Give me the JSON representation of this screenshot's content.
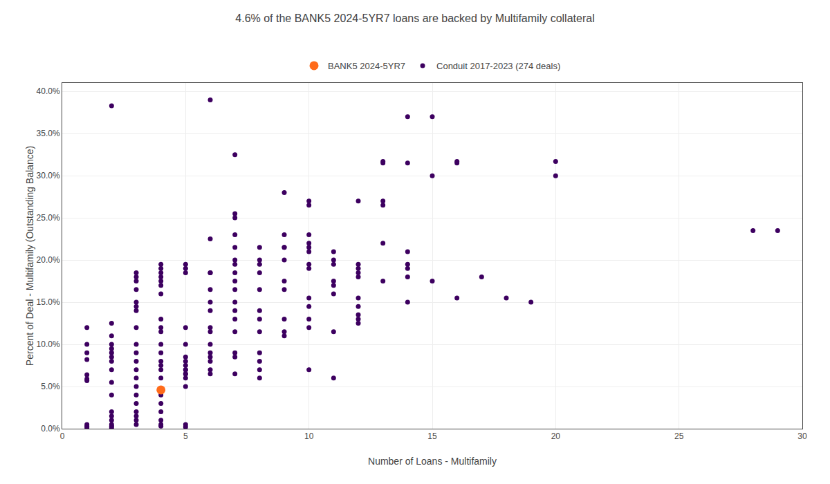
{
  "chart_data": {
    "type": "scatter",
    "title": "4.6% of the BANK5 2024-5YR7 loans are backed by Multifamily collateral",
    "xlabel": "Number of Loans - Multifamily",
    "ylabel": "Percent of Deal - Multifamily (Outstanding Balance)",
    "xlim": [
      0,
      30
    ],
    "ylim": [
      0,
      0.41
    ],
    "xticks": [
      0,
      5,
      10,
      15,
      20,
      25,
      30
    ],
    "yticks": [
      {
        "value": 0.0,
        "label": "0.0%"
      },
      {
        "value": 0.05,
        "label": "5.0%"
      },
      {
        "value": 0.1,
        "label": "10.0%"
      },
      {
        "value": 0.15,
        "label": "15.0%"
      },
      {
        "value": 0.2,
        "label": "20.0%"
      },
      {
        "value": 0.25,
        "label": "25.0%"
      },
      {
        "value": 0.3,
        "label": "30.0%"
      },
      {
        "value": 0.35,
        "label": "35.0%"
      },
      {
        "value": 0.4,
        "label": "40.0%"
      }
    ],
    "grid": true,
    "legend": "top",
    "series": [
      {
        "name": "Conduit 2017-2023 (274 deals)",
        "color": "#3D0060",
        "x": [
          1,
          1,
          1,
          1,
          1,
          1,
          1,
          1,
          1,
          1,
          2,
          2,
          2,
          2,
          2,
          2,
          2,
          2,
          2,
          2,
          2,
          2,
          2,
          2,
          2,
          2,
          2,
          3,
          3,
          3,
          3,
          3,
          3,
          3,
          3,
          3,
          3,
          3,
          3,
          3,
          3,
          3,
          3,
          3,
          3,
          3,
          3,
          4,
          4,
          4,
          4,
          4,
          4,
          4,
          4,
          4,
          4,
          4,
          4,
          4,
          4,
          4,
          4,
          4,
          4,
          4,
          4,
          4,
          4,
          5,
          5,
          5,
          5,
          5,
          5,
          5,
          5,
          5,
          5,
          5,
          5,
          5,
          5,
          5,
          5,
          6,
          6,
          6,
          6,
          6,
          6,
          6,
          6,
          6,
          6,
          6,
          6,
          6,
          6,
          6,
          7,
          7,
          7,
          7,
          7,
          7,
          7,
          7,
          7,
          7,
          7,
          7,
          7,
          7,
          7,
          7,
          7,
          8,
          8,
          8,
          8,
          8,
          8,
          8,
          8,
          8,
          8,
          8,
          8,
          9,
          9,
          9,
          9,
          9,
          9,
          9,
          9,
          9,
          9,
          10,
          10,
          10,
          10,
          10,
          10,
          10,
          10,
          10,
          10,
          10,
          10,
          10,
          11,
          11,
          11,
          11,
          11,
          11,
          11,
          11,
          12,
          12,
          12,
          12,
          12,
          12,
          12,
          12,
          12,
          12,
          13,
          13,
          13,
          13,
          13,
          13,
          14,
          14,
          14,
          14,
          14,
          14,
          14,
          15,
          15,
          15,
          16,
          16,
          16,
          17,
          18,
          19,
          20,
          20,
          28,
          29
        ],
        "values": [
          0.001,
          0.003,
          0.005,
          0.057,
          0.059,
          0.064,
          0.082,
          0.09,
          0.1,
          0.12,
          0.001,
          0.003,
          0.005,
          0.01,
          0.015,
          0.02,
          0.04,
          0.055,
          0.07,
          0.08,
          0.085,
          0.09,
          0.095,
          0.1,
          0.11,
          0.125,
          0.383,
          0.005,
          0.01,
          0.015,
          0.02,
          0.03,
          0.04,
          0.05,
          0.06,
          0.07,
          0.08,
          0.09,
          0.1,
          0.12,
          0.14,
          0.145,
          0.15,
          0.165,
          0.175,
          0.18,
          0.185,
          0.003,
          0.005,
          0.01,
          0.02,
          0.03,
          0.04,
          0.06,
          0.07,
          0.075,
          0.08,
          0.09,
          0.1,
          0.115,
          0.12,
          0.13,
          0.16,
          0.17,
          0.175,
          0.18,
          0.185,
          0.19,
          0.195,
          0.002,
          0.005,
          0.06,
          0.065,
          0.07,
          0.195,
          0.05,
          0.065,
          0.07,
          0.075,
          0.08,
          0.085,
          0.1,
          0.12,
          0.185,
          0.19,
          0.065,
          0.07,
          0.08,
          0.085,
          0.09,
          0.1,
          0.115,
          0.12,
          0.14,
          0.15,
          0.165,
          0.185,
          0.185,
          0.225,
          0.39,
          0.065,
          0.085,
          0.09,
          0.115,
          0.13,
          0.14,
          0.15,
          0.165,
          0.175,
          0.185,
          0.195,
          0.2,
          0.215,
          0.23,
          0.25,
          0.255,
          0.325,
          0.06,
          0.07,
          0.08,
          0.09,
          0.115,
          0.13,
          0.14,
          0.165,
          0.185,
          0.195,
          0.2,
          0.215,
          0.11,
          0.115,
          0.13,
          0.165,
          0.175,
          0.2,
          0.215,
          0.215,
          0.23,
          0.28,
          0.07,
          0.12,
          0.13,
          0.145,
          0.155,
          0.19,
          0.195,
          0.21,
          0.215,
          0.22,
          0.23,
          0.265,
          0.27,
          0.06,
          0.115,
          0.16,
          0.17,
          0.175,
          0.195,
          0.2,
          0.21,
          0.125,
          0.13,
          0.135,
          0.145,
          0.155,
          0.18,
          0.185,
          0.19,
          0.195,
          0.27,
          0.175,
          0.22,
          0.265,
          0.27,
          0.315,
          0.317,
          0.15,
          0.18,
          0.19,
          0.195,
          0.21,
          0.315,
          0.37,
          0.175,
          0.3,
          0.37,
          0.155,
          0.315,
          0.317,
          0.18,
          0.155,
          0.15,
          0.3,
          0.317,
          0.235,
          0.235
        ]
      },
      {
        "name": "BANK5 2024-5YR7",
        "color": "#FF6B1A",
        "x": [
          4
        ],
        "values": [
          0.046
        ]
      }
    ]
  }
}
